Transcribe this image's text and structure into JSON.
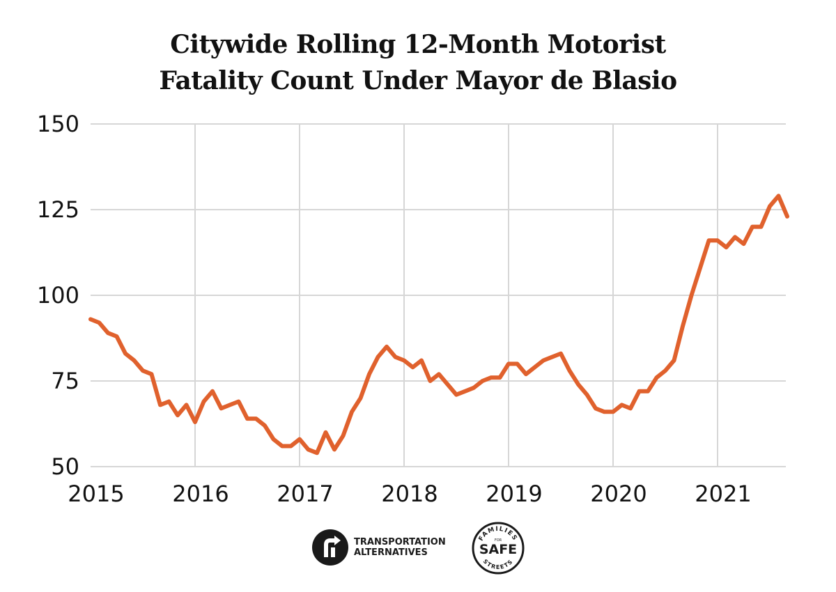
{
  "title": {
    "line1": "Citywide Rolling 12-Month Motorist",
    "line2": "Fatality Count Under Mayor de Blasio"
  },
  "chart_data": {
    "type": "line",
    "title": "Citywide Rolling 12-Month Motorist Fatality Count Under Mayor de Blasio",
    "xlabel": "",
    "ylabel": "",
    "ylim": [
      50,
      150
    ],
    "yticks": [
      50,
      75,
      100,
      125,
      150
    ],
    "xticks": [
      2015,
      2016,
      2017,
      2018,
      2019,
      2020,
      2021
    ],
    "xlim": [
      2015,
      2021.67
    ],
    "grid": true,
    "line_color": "#e0612d",
    "series": [
      {
        "x": [
          2015.0,
          2015.083,
          2015.167,
          2015.25,
          2015.333,
          2015.417,
          2015.5,
          2015.583,
          2015.667,
          2015.75,
          2015.833,
          2015.917,
          2016.0,
          2016.083,
          2016.167,
          2016.25,
          2016.333,
          2016.417,
          2016.5,
          2016.583,
          2016.667,
          2016.75,
          2016.833,
          2016.917,
          2017.0,
          2017.083,
          2017.167,
          2017.25,
          2017.333,
          2017.417,
          2017.5,
          2017.583,
          2017.667,
          2017.75,
          2017.833,
          2017.917,
          2018.0,
          2018.083,
          2018.167,
          2018.25,
          2018.333,
          2018.417,
          2018.5,
          2018.583,
          2018.667,
          2018.75,
          2018.833,
          2018.917,
          2019.0,
          2019.083,
          2019.167,
          2019.25,
          2019.333,
          2019.417,
          2019.5,
          2019.583,
          2019.667,
          2019.75,
          2019.833,
          2019.917,
          2020.0,
          2020.083,
          2020.167,
          2020.25,
          2020.333,
          2020.417,
          2020.5,
          2020.583,
          2020.667,
          2020.75,
          2020.833,
          2020.917,
          2021.0,
          2021.083,
          2021.167,
          2021.25,
          2021.333,
          2021.417,
          2021.5,
          2021.583,
          2021.667
        ],
        "y": [
          93,
          92,
          89,
          88,
          83,
          81,
          78,
          77,
          68,
          69,
          65,
          68,
          63,
          69,
          72,
          67,
          68,
          69,
          64,
          64,
          62,
          58,
          56,
          56,
          58,
          55,
          54,
          60,
          55,
          59,
          66,
          70,
          77,
          82,
          85,
          82,
          81,
          79,
          81,
          75,
          77,
          74,
          71,
          72,
          73,
          75,
          76,
          76,
          80,
          80,
          77,
          79,
          81,
          82,
          83,
          78,
          74,
          71,
          67,
          66,
          66,
          68,
          67,
          72,
          72,
          76,
          78,
          81,
          91,
          100,
          108,
          116,
          116,
          114,
          117,
          115,
          120,
          120,
          126,
          129,
          123
        ]
      }
    ]
  },
  "logos": {
    "ta_line1": "TRANSPORTATION",
    "ta_line2": "ALTERNATIVES",
    "fss_top": "FAMILIES",
    "fss_for": "FOR",
    "fss_main": "SAFE",
    "fss_bottom": "STREETS"
  }
}
